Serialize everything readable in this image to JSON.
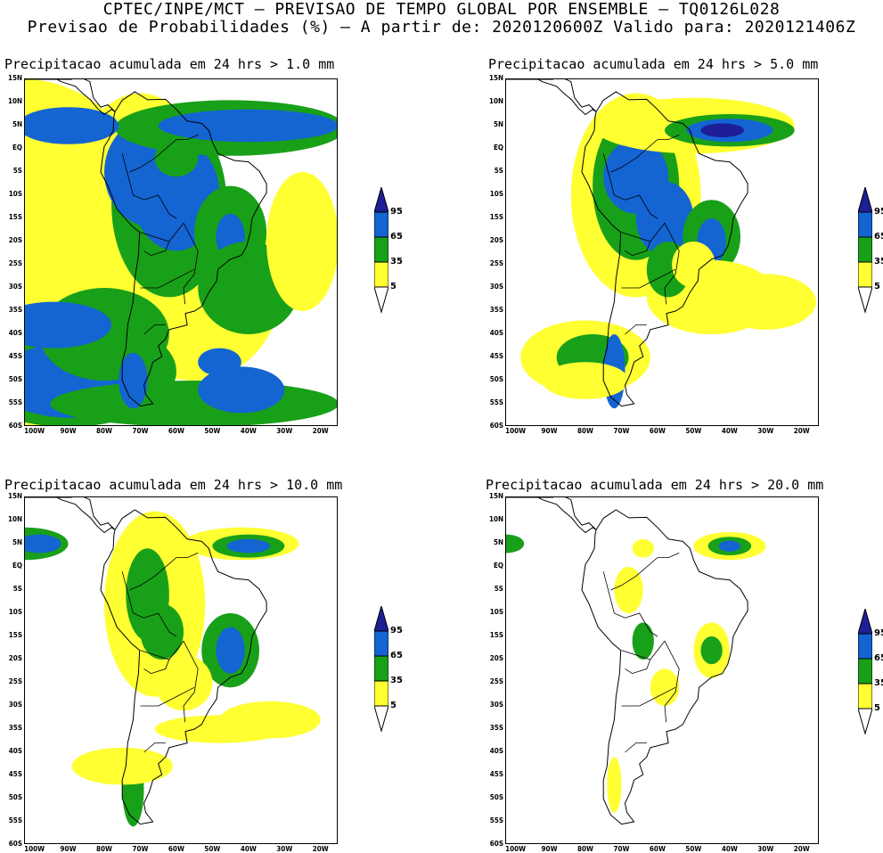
{
  "header": {
    "line1": "CPTEC/INPE/MCT — PREVISAO DE TEMPO GLOBAL POR ENSEMBLE — TQ0126L028",
    "line2": "Previsao de Probabilidades (%) —   A partir de: 2020120600Z  Valido para: 2020121406Z"
  },
  "lat_ticks": [
    "15N",
    "10N",
    "5N",
    "EQ",
    "5S",
    "10S",
    "15S",
    "20S",
    "25S",
    "30S",
    "35S",
    "40S",
    "45S",
    "50S",
    "55S",
    "60S"
  ],
  "lon_ticks": [
    "100W",
    "90W",
    "80W",
    "70W",
    "60W",
    "50W",
    "40W",
    "30W",
    "20W"
  ],
  "colorbar": {
    "levels": [
      "95",
      "65",
      "35",
      "5"
    ],
    "colors": {
      "c95": "#1e1e96",
      "c65": "#1464d2",
      "c35": "#19a019",
      "c5": "#ffff32"
    }
  },
  "panels": [
    {
      "title": "Precipitacao acumulada em 24 hrs > 1.0 mm"
    },
    {
      "title": "Precipitacao acumulada em 24 hrs > 5.0 mm"
    },
    {
      "title": "Precipitacao acumulada em 24 hrs > 10.0 mm"
    },
    {
      "title": "Precipitacao acumulada em 24 hrs > 20.0 mm"
    }
  ]
}
